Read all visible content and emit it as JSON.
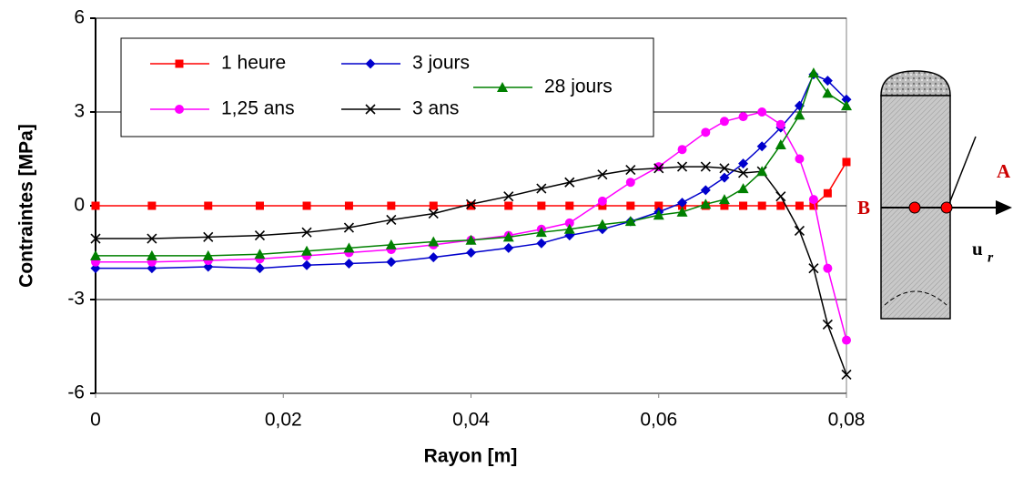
{
  "chart_data": {
    "type": "line",
    "ylabel": "Contraintes [MPa]",
    "xlabel": "Rayon [m]",
    "xlim": [
      0,
      0.08
    ],
    "ylim": [
      -6,
      6
    ],
    "xticks": [
      0,
      {
        "value": 0.02,
        "label": "0,02"
      },
      {
        "value": 0.04,
        "label": "0,04"
      },
      {
        "value": 0.06,
        "label": "0,06"
      },
      {
        "value": 0.08,
        "label": "0,08"
      }
    ],
    "yticks": [
      -6,
      -3,
      0,
      3,
      6
    ],
    "grid": true,
    "x": [
      0,
      0.006,
      0.012,
      0.0175,
      0.0225,
      0.027,
      0.0315,
      0.036,
      0.04,
      0.044,
      0.0475,
      0.0505,
      0.054,
      0.057,
      0.06,
      0.0625,
      0.065,
      0.067,
      0.069,
      0.071,
      0.073,
      0.075,
      0.0765,
      0.078,
      0.08
    ],
    "series": [
      {
        "name": "1 heure",
        "color": "#ff0000",
        "marker": "square",
        "values": [
          0,
          0,
          0,
          0,
          0,
          0,
          0,
          0,
          0,
          0,
          0,
          0,
          0,
          0,
          0,
          0,
          0,
          0,
          0,
          0,
          0,
          0,
          0,
          0.4,
          1.4
        ]
      },
      {
        "name": "3 jours",
        "color": "#0000cc",
        "marker": "diamond",
        "values": [
          -2.0,
          -2.0,
          -1.95,
          -2.0,
          -1.9,
          -1.85,
          -1.8,
          -1.65,
          -1.5,
          -1.35,
          -1.2,
          -0.95,
          -0.75,
          -0.5,
          -0.2,
          0.1,
          0.5,
          0.9,
          1.35,
          1.9,
          2.5,
          3.2,
          4.2,
          4.0,
          3.4
        ]
      },
      {
        "name": "1,25 ans",
        "color": "#ff00ff",
        "marker": "circle",
        "values": [
          -1.8,
          -1.8,
          -1.75,
          -1.7,
          -1.6,
          -1.5,
          -1.4,
          -1.25,
          -1.1,
          -0.95,
          -0.75,
          -0.55,
          0.15,
          0.75,
          1.25,
          1.8,
          2.35,
          2.7,
          2.85,
          3.0,
          2.6,
          1.5,
          0.2,
          -2.0,
          -4.3
        ]
      },
      {
        "name": "3 ans",
        "color": "#000000",
        "marker": "cross",
        "values": [
          -1.05,
          -1.05,
          -1.0,
          -0.95,
          -0.85,
          -0.7,
          -0.45,
          -0.25,
          0.05,
          0.3,
          0.55,
          0.75,
          1.0,
          1.15,
          1.2,
          1.25,
          1.25,
          1.2,
          1.05,
          1.1,
          0.3,
          -0.8,
          -2.0,
          -3.8,
          -5.4
        ]
      },
      {
        "name": "28 jours",
        "color": "#008000",
        "marker": "triangle",
        "values": [
          -1.6,
          -1.6,
          -1.6,
          -1.55,
          -1.45,
          -1.35,
          -1.25,
          -1.15,
          -1.1,
          -1.0,
          -0.85,
          -0.75,
          -0.6,
          -0.5,
          -0.3,
          -0.2,
          0.05,
          0.2,
          0.55,
          1.1,
          1.95,
          2.9,
          4.25,
          3.6,
          3.2
        ]
      }
    ]
  },
  "diagram": {
    "point_a": "A",
    "point_b": "B",
    "vector": "u",
    "vector_subscript": "r"
  }
}
